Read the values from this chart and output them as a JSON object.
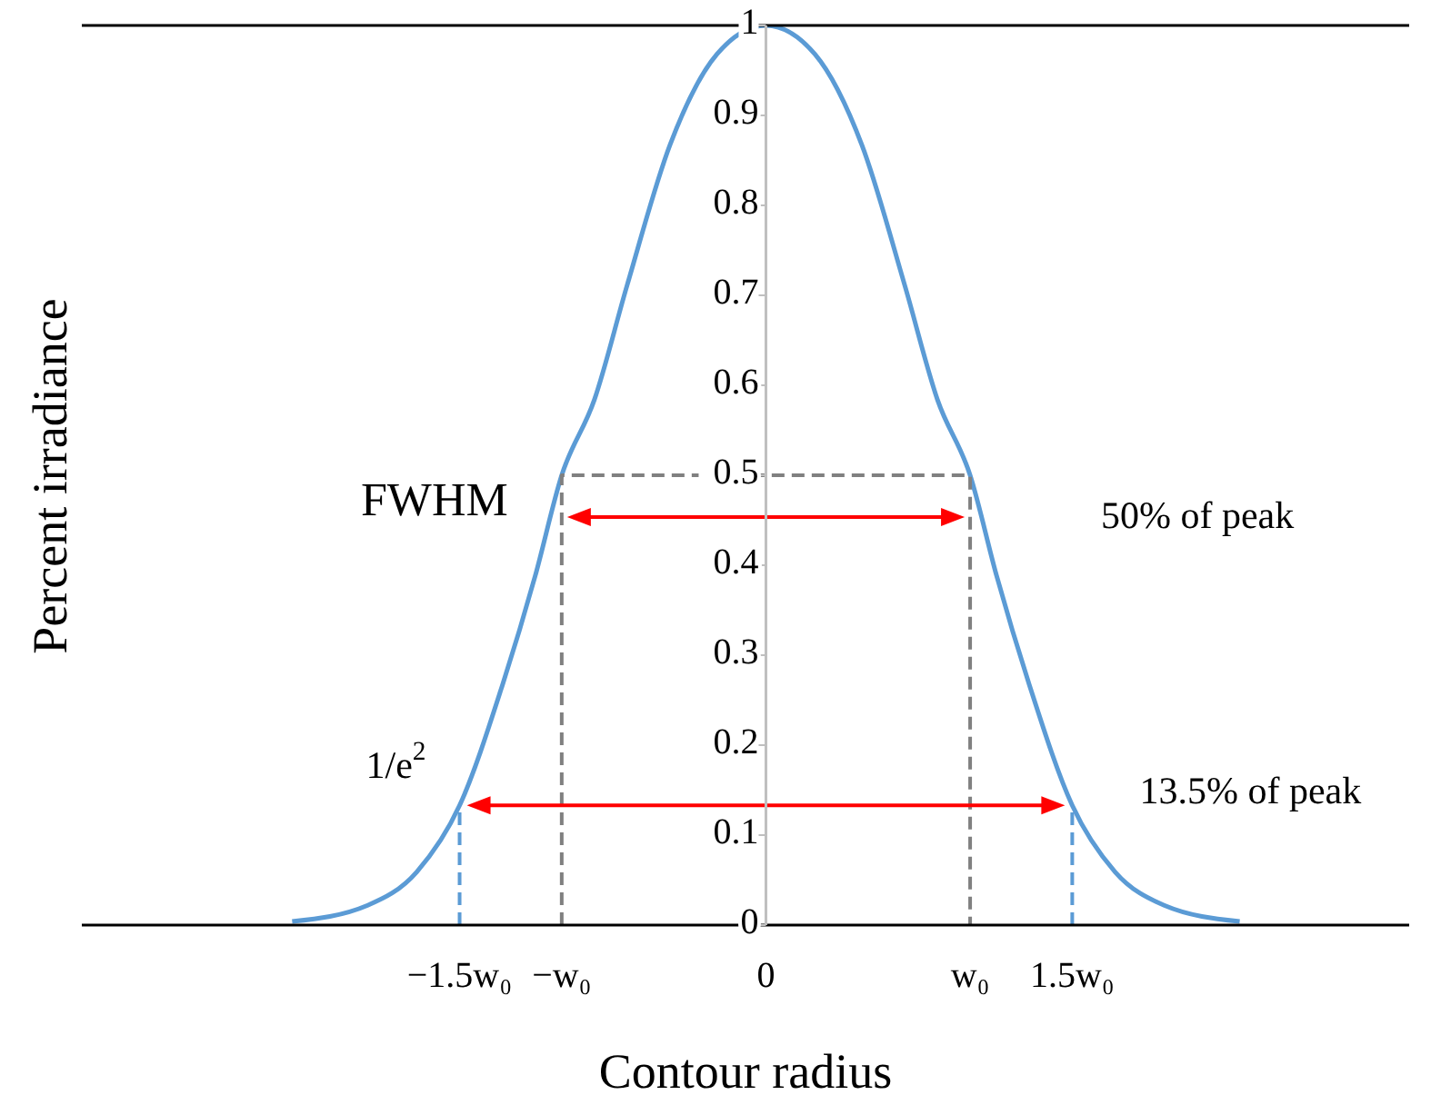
{
  "chart_data": {
    "type": "line",
    "xlabel": "Contour radius",
    "ylabel": "Percent irradiance",
    "xlim": [
      -3.35,
      3.15
    ],
    "xticks": [
      {
        "value": -1.5,
        "label": "−1.5w₀"
      },
      {
        "value": -1,
        "label": "−w₀"
      },
      {
        "value": 0,
        "label": "0"
      },
      {
        "value": 1,
        "label": "w₀"
      },
      {
        "value": 1.5,
        "label": "1.5w₀"
      }
    ],
    "ylim": [
      0,
      1
    ],
    "yticks": [
      0,
      0.1,
      0.2,
      0.3,
      0.4,
      0.5,
      0.6,
      0.7,
      0.8,
      0.9,
      1
    ],
    "marker": "none",
    "line_style": "solid",
    "series": [
      {
        "color": "#5b9bd5",
        "x": [
          -2.32,
          -1.95,
          -1.71,
          -1.5,
          -1.29,
          -1.13,
          -1,
          -0.84,
          -0.68,
          -0.47,
          -0.24,
          0,
          0.24,
          0.47,
          0.68,
          0.84,
          1,
          1.13,
          1.29,
          1.5,
          1.71,
          1.95,
          2.32
        ],
        "values": [
          0.004,
          0.022,
          0.059,
          0.133,
          0.267,
          0.388,
          0.5,
          0.584,
          0.711,
          0.867,
          0.968,
          1,
          0.968,
          0.867,
          0.711,
          0.584,
          0.5,
          0.388,
          0.267,
          0.133,
          0.059,
          0.022,
          0.004
        ]
      },
      {
        "color": "#808080",
        "line_style": "dashed",
        "x": [
          -1,
          -1,
          1,
          1
        ],
        "values": [
          0,
          0.5,
          0.5,
          0
        ]
      },
      {
        "color": "#5b9bd5",
        "line_style": "dashed",
        "x": [
          -1.5,
          -1.5
        ],
        "values": [
          0,
          0.133
        ]
      },
      {
        "color": "#5b9bd5",
        "line_style": "dashed",
        "x": [
          1.5,
          1.5
        ],
        "values": [
          0,
          0.133
        ]
      }
    ],
    "annotations": [
      "FWHM",
      "50% of peak",
      "1/e$^{2}$",
      "13.5% of peak"
    ]
  }
}
